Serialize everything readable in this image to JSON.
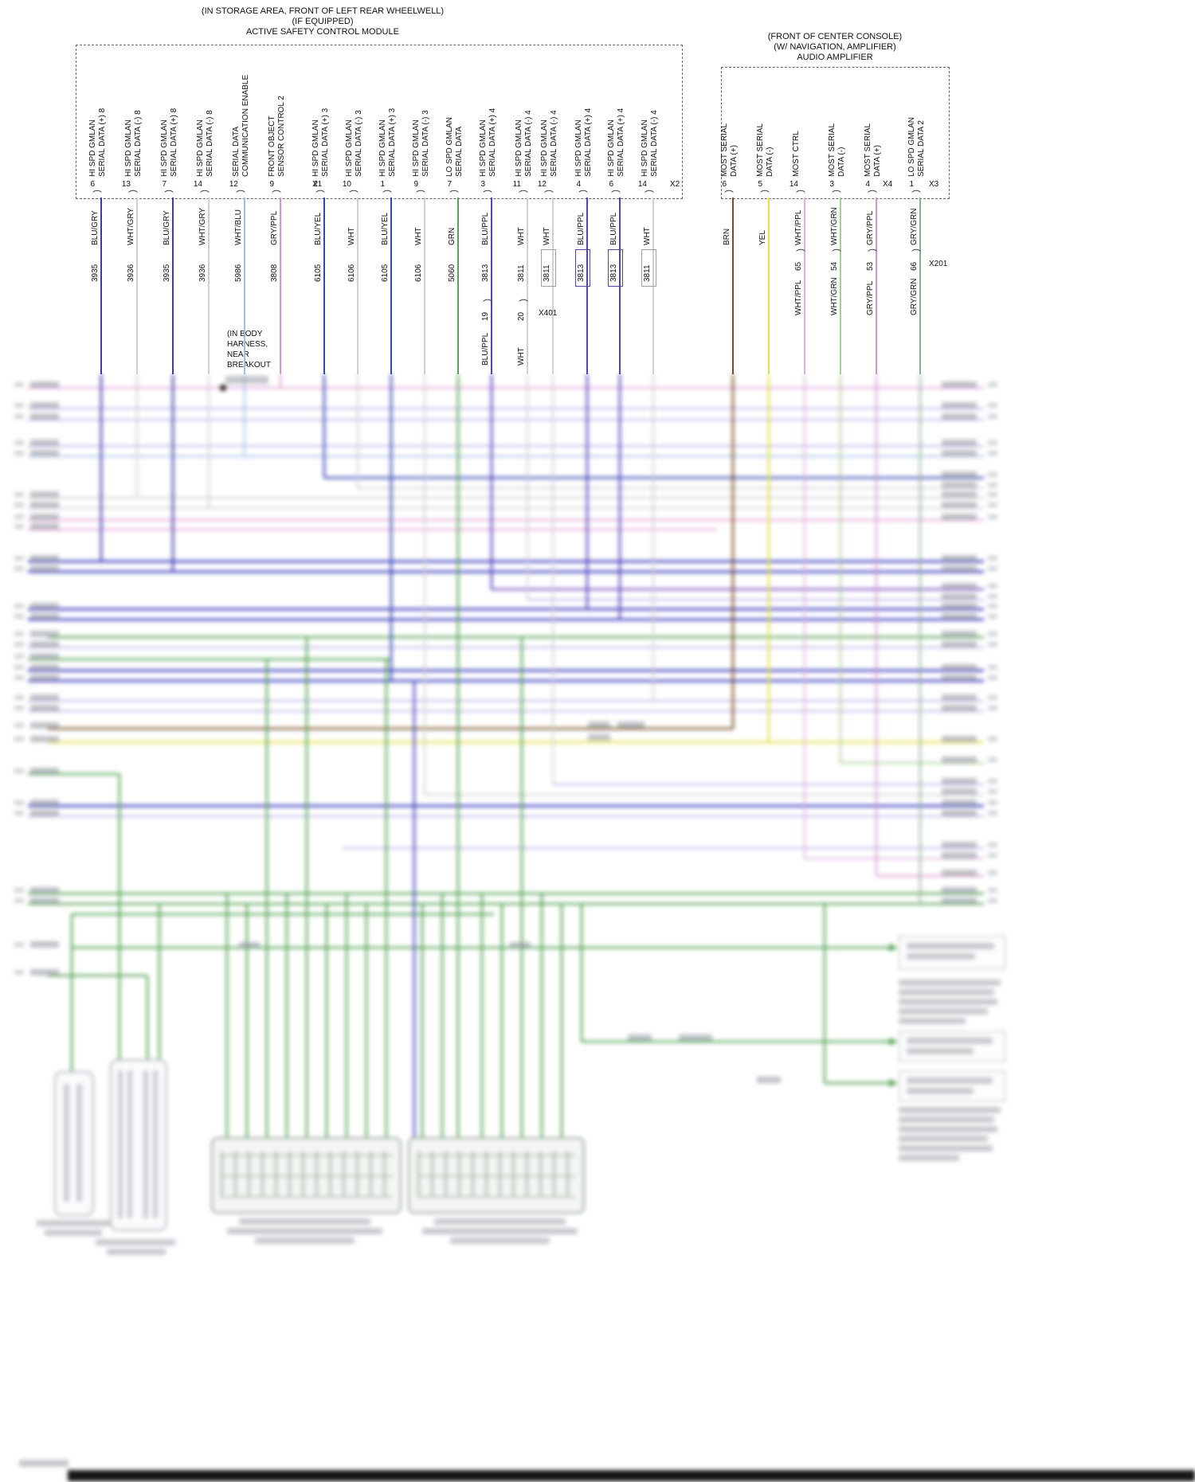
{
  "left_module": {
    "title_lines": [
      "(IN STORAGE AREA, FRONT OF LEFT REAR WHEELWELL)",
      "(IF EQUIPPED)",
      "ACTIVE SAFETY CONTROL MODULE"
    ],
    "pins": [
      {
        "signal": [
          "HI SPD GMLAN",
          "SERIAL DATA (+) 8"
        ],
        "pin": "6",
        "wire": "BLU/GRY",
        "circuit": "3935"
      },
      {
        "signal": [
          "HI SPD GMLAN",
          "SERIAL DATA (-) 8"
        ],
        "pin": "13",
        "wire": "WHT/GRY",
        "circuit": "3936"
      },
      {
        "signal": [
          "HI SPD GMLAN",
          "SERIAL DATA (+) 8"
        ],
        "pin": "7",
        "wire": "BLU/GRY",
        "circuit": "3935"
      },
      {
        "signal": [
          "HI SPD GMLAN",
          "SERIAL DATA (-) 8"
        ],
        "pin": "14",
        "wire": "WHT/GRY",
        "circuit": "3936"
      },
      {
        "signal": [
          "SERIAL DATA",
          "COMMUNICATION ENABLE"
        ],
        "pin": "12",
        "wire": "WHT/BLU",
        "circuit": "5986"
      },
      {
        "signal": [
          "FRONT OBJECT",
          "SENSOR CONTROL 2"
        ],
        "pin": "9",
        "wire": "GRY/PPL",
        "circuit": "3808"
      },
      {
        "signal": [
          "HI SPD GMLAN",
          "SERIAL DATA (+) 3"
        ],
        "pin": "2",
        "wire": "BLU/YEL",
        "circuit": "6105"
      },
      {
        "signal": [
          "HI SPD GMLAN",
          "SERIAL DATA (-) 3"
        ],
        "pin": "10",
        "wire": "WHT",
        "circuit": "6106"
      },
      {
        "signal": [
          "HI SPD GMLAN",
          "SERIAL DATA (+) 3"
        ],
        "pin": "1",
        "wire": "BLU/YEL",
        "circuit": "6105"
      },
      {
        "signal": [
          "HI SPD GMLAN",
          "SERIAL DATA (-) 3"
        ],
        "pin": "9",
        "wire": "WHT",
        "circuit": "6106"
      },
      {
        "signal": [
          "LO SPD GMLAN",
          "SERIAL DATA"
        ],
        "pin": "7",
        "wire": "GRN",
        "circuit": "5060"
      },
      {
        "signal": [
          "HI SPD GMLAN",
          "SERIAL DATA (+) 4"
        ],
        "pin": "3",
        "wire": "BLU/PPL",
        "circuit": "3813"
      },
      {
        "signal": [
          "HI SPD GMLAN",
          "SERIAL DATA (-) 4"
        ],
        "pin": "11",
        "wire": "WHT",
        "circuit": "3811"
      },
      {
        "signal": [
          "HI SPD GMLAN",
          "SERIAL DATA (-) 4"
        ],
        "pin": "12",
        "wire": "WHT",
        "circuit": "3811"
      },
      {
        "signal": [
          "HI SPD GMLAN",
          "SERIAL DATA (+) 4"
        ],
        "pin": "4",
        "wire": "BLU/PPL",
        "circuit": "3813"
      },
      {
        "signal": [
          "HI SPD GMLAN",
          "SERIAL DATA (+) 4"
        ],
        "pin": "6",
        "wire": "BLU/PPL",
        "circuit": "3813"
      },
      {
        "signal": [
          "HI SPD GMLAN",
          "SERIAL DATA (-) 4"
        ],
        "pin": "14",
        "wire": "WHT",
        "circuit": "3811"
      }
    ],
    "connectors": [
      "X1",
      "X2"
    ]
  },
  "right_module": {
    "title_lines": [
      "(FRONT OF CENTER CONSOLE)",
      "(W/ NAVIGATION, AMPLIFIER)",
      "AUDIO AMPLIFIER"
    ],
    "pins": [
      {
        "signal": [
          "MOST SERIAL",
          "DATA (+)"
        ],
        "pin": "6",
        "wire": "BRN"
      },
      {
        "signal": [
          "MOST SERIAL",
          "DATA (-)"
        ],
        "pin": "5",
        "wire": "YEL"
      },
      {
        "signal": [
          "MOST CTRL"
        ],
        "pin": "14",
        "wire": "WHT/PPL"
      },
      {
        "signal": [
          "MOST SERIAL",
          "DATA (-)"
        ],
        "pin": "3",
        "wire": "WHT/GRN"
      },
      {
        "signal": [
          "MOST SERIAL",
          "DATA (+)"
        ],
        "pin": "4",
        "wire": "GRY/PPL"
      },
      {
        "signal": [
          "LO SPD GMLAN",
          "SERIAL DATA 2"
        ],
        "pin": "1",
        "wire": "GRY/GRN"
      }
    ],
    "connectors": [
      "X4",
      "X3"
    ]
  },
  "inline_connectors": [
    {
      "name": "X401",
      "pins": [
        {
          "wire": "BLU/PPL",
          "pin": "19"
        },
        {
          "wire": "WHT",
          "pin": "20"
        }
      ]
    },
    {
      "name": "X201",
      "pins": [
        {
          "wire": "WHT/PPL",
          "pin": "65"
        },
        {
          "wire": "WHT/GRN",
          "pin": "54"
        },
        {
          "wire": "GRY/PPL",
          "pin": "53"
        },
        {
          "wire": "GRY/GRN",
          "pin": "66"
        }
      ]
    }
  ],
  "body_harness_note": [
    "(IN BODY",
    "HARNESS,",
    "NEAR",
    "BREAKOUT"
  ],
  "palette": {
    "blu_gry": "#3a3aa8",
    "wht_gry": "#cfcfcf",
    "wht_blu": "#9ec0e6",
    "gry_ppl": "#d894cc",
    "blu_yel": "#3846b4",
    "wht": "#cfcfd4",
    "grn": "#55a455",
    "blu_ppl": "#5242bc",
    "brn": "#745026",
    "yel": "#e2e04a",
    "wht_ppl": "#d8b4dc",
    "wht_grn": "#a8cc98",
    "gry_grn": "#8fae8f",
    "strong_blue": "#4646c2",
    "lavender": "#b9b1e2",
    "pink": "#e09cd4",
    "purple": "#7a52c0"
  }
}
